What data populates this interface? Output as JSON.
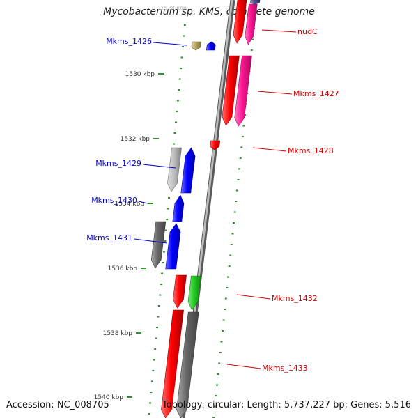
{
  "title": "Mycobacterium sp. KMS, complete genome",
  "accession_text": "Accession: NC_008705",
  "summary_text": "Topology: circular; Length: 5,737,227 bp; Genes: 5,516",
  "colors": {
    "backbone": "#8a8a8a",
    "scale": "#2f8f2f",
    "label_left": "#0000cc",
    "label_right": "#d40000",
    "red": "#ff0000",
    "pink": "#ff1493",
    "blue": "#0000ff",
    "olive": "#b8a860",
    "light_gray": "#c0c0c0",
    "dark_gray": "#666666",
    "green": "#22cc22",
    "purple": "#505090"
  },
  "scale": {
    "unit": "kbp",
    "top_partial": "1528 kbp",
    "labels": [
      "1530 kbp",
      "1532 kbp",
      "1534 kbp",
      "1536 kbp",
      "1538 kbp",
      "1540 kbp"
    ]
  },
  "genes_left": [
    "Mkms_1426",
    "Mkms_1429",
    "Mkms_1430",
    "Mkms_1431"
  ],
  "genes_right": [
    "nudC",
    "Mkms_1427",
    "Mkms_1428",
    "Mkms_1432",
    "Mkms_1433"
  ]
}
